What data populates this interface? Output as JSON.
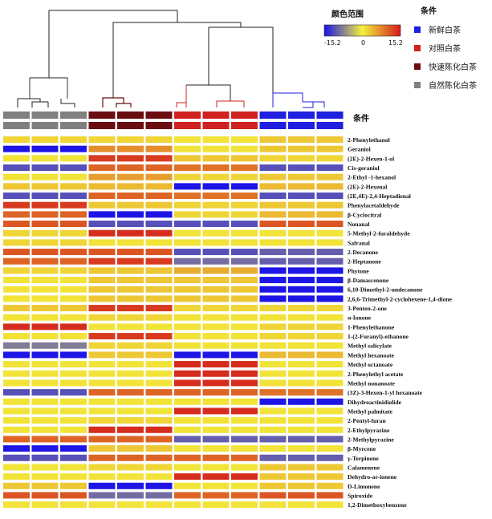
{
  "chart_data": {
    "type": "heatmap",
    "color_scale": {
      "title": "颜色范围",
      "min": -15.2,
      "mid": 0,
      "max": 15.2,
      "tick_labels": [
        "-15.2",
        "0",
        "15.2"
      ],
      "colors": [
        "#1a12e8",
        "#f4f13a",
        "#d31b1b"
      ]
    },
    "condition_legend": {
      "title": "条件",
      "items": [
        {
          "label": "新鲜白茶",
          "color": "#1f1fe0"
        },
        {
          "label": "对照白茶",
          "color": "#d02020"
        },
        {
          "label": "快速陈化白茶",
          "color": "#6a0d12"
        },
        {
          "label": "自然陈化白茶",
          "color": "#808080"
        }
      ]
    },
    "condition_row_label": "条件",
    "column_groups": [
      "自然陈化白茶",
      "自然陈化白茶",
      "自然陈化白茶",
      "快速陈化白茶",
      "快速陈化白茶",
      "快速陈化白茶",
      "对照白茶",
      "对照白茶",
      "对照白茶",
      "新鲜白茶",
      "新鲜白茶",
      "新鲜白茶"
    ],
    "rows": [
      "2-Phenylethanol",
      "Geraniol",
      "(2E)-2-Hexen-1-ol",
      "Cis-geraniol",
      "2-Ethyl -1-hexanol",
      "(2E)-2-Hexenal",
      "(2E,4E)-2,4-Heptadienal",
      "Phenylacetaldehyde",
      "β-Cyclocitral",
      "Nonanal",
      "5-Methyl-2-furaldehyde",
      "Safranal",
      "2-Decanone",
      "2-Heptanone",
      "Phytone",
      "β-Damascenone",
      "6,10-Dimethyl-2-undecanone",
      "2,6,6-Trimethyl-2-cyclohexene-1,4-dione",
      "3-Penten-2-one",
      "α-Ionone",
      "1-Phenylethanone",
      "1-(2-Furanyl)-ethanone",
      "Methyl salicylate",
      "Methyl hexanoate",
      "Methyl octanoate",
      "2-Phenylethyl acetate",
      "Methyl nonanoate",
      "(3Z)-3-Hexen-1-yl hexanoate",
      "Dihydroactinidiolide",
      "Methyl palmitate",
      "2-Pentyl-furan",
      "2-Ethylpyrazine",
      "2-Methylpyrazine",
      "β-Myrcene",
      "γ-Terpinene",
      "Calamenene",
      "Dehydro-ar-ionene",
      "D-Limonene",
      "Spiroxide",
      "1,2-Dimethoxybenzene"
    ],
    "values": [
      [
        2,
        2,
        2,
        2,
        2,
        2,
        1,
        1,
        1,
        3,
        3,
        3
      ],
      [
        -15,
        -15,
        -15,
        7,
        7,
        7,
        1,
        1,
        1,
        3,
        3,
        3
      ],
      [
        1,
        1,
        1,
        13,
        13,
        13,
        3,
        3,
        3,
        2,
        2,
        2
      ],
      [
        -11,
        -11,
        -11,
        10,
        10,
        10,
        9,
        9,
        9,
        -11,
        -11,
        -11
      ],
      [
        1,
        1,
        1,
        6,
        6,
        6,
        2,
        2,
        2,
        3,
        3,
        3
      ],
      [
        3,
        3,
        3,
        4,
        4,
        4,
        -15,
        -15,
        -15,
        4,
        4,
        4
      ],
      [
        -11,
        -11,
        -11,
        10,
        10,
        10,
        9,
        9,
        9,
        -11,
        -11,
        -11
      ],
      [
        13,
        13,
        13,
        3,
        3,
        3,
        2,
        2,
        2,
        3,
        3,
        3
      ],
      [
        10,
        10,
        10,
        -15,
        -15,
        -15,
        2,
        2,
        2,
        4,
        4,
        4
      ],
      [
        11,
        11,
        11,
        -11,
        -11,
        -11,
        -11,
        -11,
        -11,
        11,
        11,
        11
      ],
      [
        2,
        2,
        2,
        14,
        14,
        14,
        1,
        1,
        1,
        1,
        1,
        1
      ],
      [
        2,
        2,
        2,
        1,
        1,
        1,
        1,
        1,
        1,
        1,
        1,
        1
      ],
      [
        11,
        11,
        11,
        11,
        11,
        11,
        -11,
        -11,
        -11,
        -10,
        -10,
        -10
      ],
      [
        10,
        10,
        10,
        13,
        13,
        13,
        -9,
        -9,
        -9,
        -10,
        -10,
        -10
      ],
      [
        2,
        2,
        2,
        3,
        3,
        3,
        5,
        5,
        5,
        -15,
        -15,
        -15
      ],
      [
        1,
        1,
        1,
        3,
        3,
        3,
        3,
        3,
        3,
        -15,
        -15,
        -15
      ],
      [
        1,
        1,
        1,
        3,
        3,
        3,
        3,
        3,
        3,
        -15,
        -15,
        -15
      ],
      [
        1,
        1,
        1,
        3,
        3,
        3,
        3,
        3,
        3,
        -15,
        -15,
        -15
      ],
      [
        3,
        3,
        3,
        13,
        13,
        13,
        2,
        2,
        2,
        2,
        2,
        2
      ],
      [
        1,
        1,
        1,
        2,
        2,
        2,
        1,
        1,
        1,
        1,
        1,
        1
      ],
      [
        14,
        14,
        14,
        1,
        1,
        1,
        1,
        1,
        1,
        2,
        2,
        2
      ],
      [
        1,
        1,
        1,
        13,
        13,
        13,
        1,
        1,
        1,
        2,
        2,
        2
      ],
      [
        -8,
        -8,
        -8,
        2,
        2,
        2,
        1,
        1,
        1,
        1,
        1,
        1
      ],
      [
        -15,
        -15,
        -15,
        3,
        3,
        3,
        -15,
        -15,
        -15,
        4,
        4,
        4
      ],
      [
        1,
        1,
        1,
        1,
        1,
        1,
        14,
        14,
        14,
        1,
        1,
        1
      ],
      [
        1,
        1,
        1,
        1,
        1,
        1,
        14,
        14,
        14,
        1,
        1,
        1
      ],
      [
        1,
        1,
        1,
        1,
        1,
        1,
        14,
        14,
        14,
        1,
        1,
        1
      ],
      [
        -11,
        -11,
        -11,
        10,
        10,
        10,
        10,
        10,
        10,
        9,
        9,
        9
      ],
      [
        1,
        1,
        1,
        1,
        1,
        1,
        1,
        1,
        1,
        -15,
        -15,
        -15
      ],
      [
        1,
        1,
        1,
        1,
        1,
        1,
        14,
        14,
        14,
        1,
        1,
        1
      ],
      [
        1,
        1,
        1,
        2,
        2,
        2,
        1,
        1,
        1,
        1,
        1,
        1
      ],
      [
        1,
        1,
        1,
        14,
        14,
        14,
        1,
        1,
        1,
        1,
        1,
        1
      ],
      [
        10,
        10,
        10,
        10,
        10,
        10,
        -10,
        -10,
        -10,
        -10,
        -10,
        -10
      ],
      [
        -15,
        -15,
        -15,
        3,
        3,
        3,
        1,
        1,
        1,
        1,
        1,
        1
      ],
      [
        -11,
        -11,
        -11,
        10,
        10,
        10,
        10,
        10,
        10,
        -10,
        -10,
        -10
      ],
      [
        1,
        1,
        1,
        2,
        2,
        2,
        1,
        1,
        1,
        3,
        3,
        3
      ],
      [
        1,
        1,
        1,
        1,
        1,
        1,
        14,
        14,
        14,
        3,
        3,
        3
      ],
      [
        3,
        3,
        3,
        -15,
        -15,
        -15,
        1,
        1,
        1,
        3,
        3,
        3
      ],
      [
        11,
        11,
        11,
        -9,
        -9,
        -9,
        10,
        10,
        10,
        11,
        11,
        11
      ],
      [
        1,
        1,
        1,
        1,
        1,
        1,
        1,
        1,
        1,
        1,
        1,
        1
      ]
    ]
  }
}
